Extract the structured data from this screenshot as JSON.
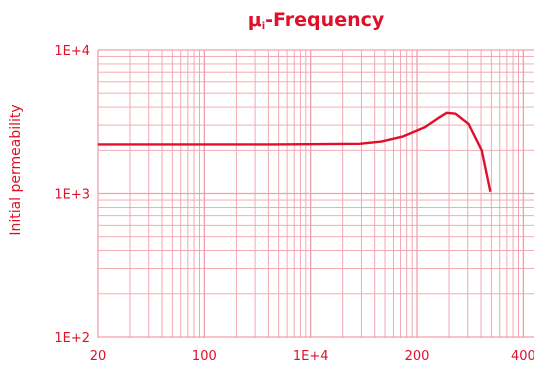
{
  "chart_data": {
    "type": "line",
    "title": "μi-Frequency",
    "title_main": "μ",
    "title_sub": "i",
    "title_rest": "-Frequency",
    "ylabel": "Initial permeability",
    "xlabel": "",
    "yscale": "log",
    "ylim": [
      100,
      10000
    ],
    "y_ticks": [
      {
        "value": 10000,
        "label": "1E+4"
      },
      {
        "value": 1000,
        "label": "1E+3"
      },
      {
        "value": 100,
        "label": "1E+2"
      }
    ],
    "x_tick_labels": [
      "20",
      "100",
      "1E+4",
      "200",
      "400"
    ],
    "grid": true,
    "colors": {
      "accent": "#e0102a",
      "grid": "#f0a0ac"
    },
    "series": [
      {
        "x": [
          0.0,
          0.2,
          0.4,
          0.6,
          0.65,
          0.7,
          0.75,
          0.78,
          0.8,
          0.82,
          0.85,
          0.88,
          0.9
        ],
        "y": [
          2200,
          2200,
          2200,
          2220,
          2300,
          2500,
          2900,
          3350,
          3650,
          3600,
          3050,
          2000,
          1030
        ]
      }
    ]
  }
}
